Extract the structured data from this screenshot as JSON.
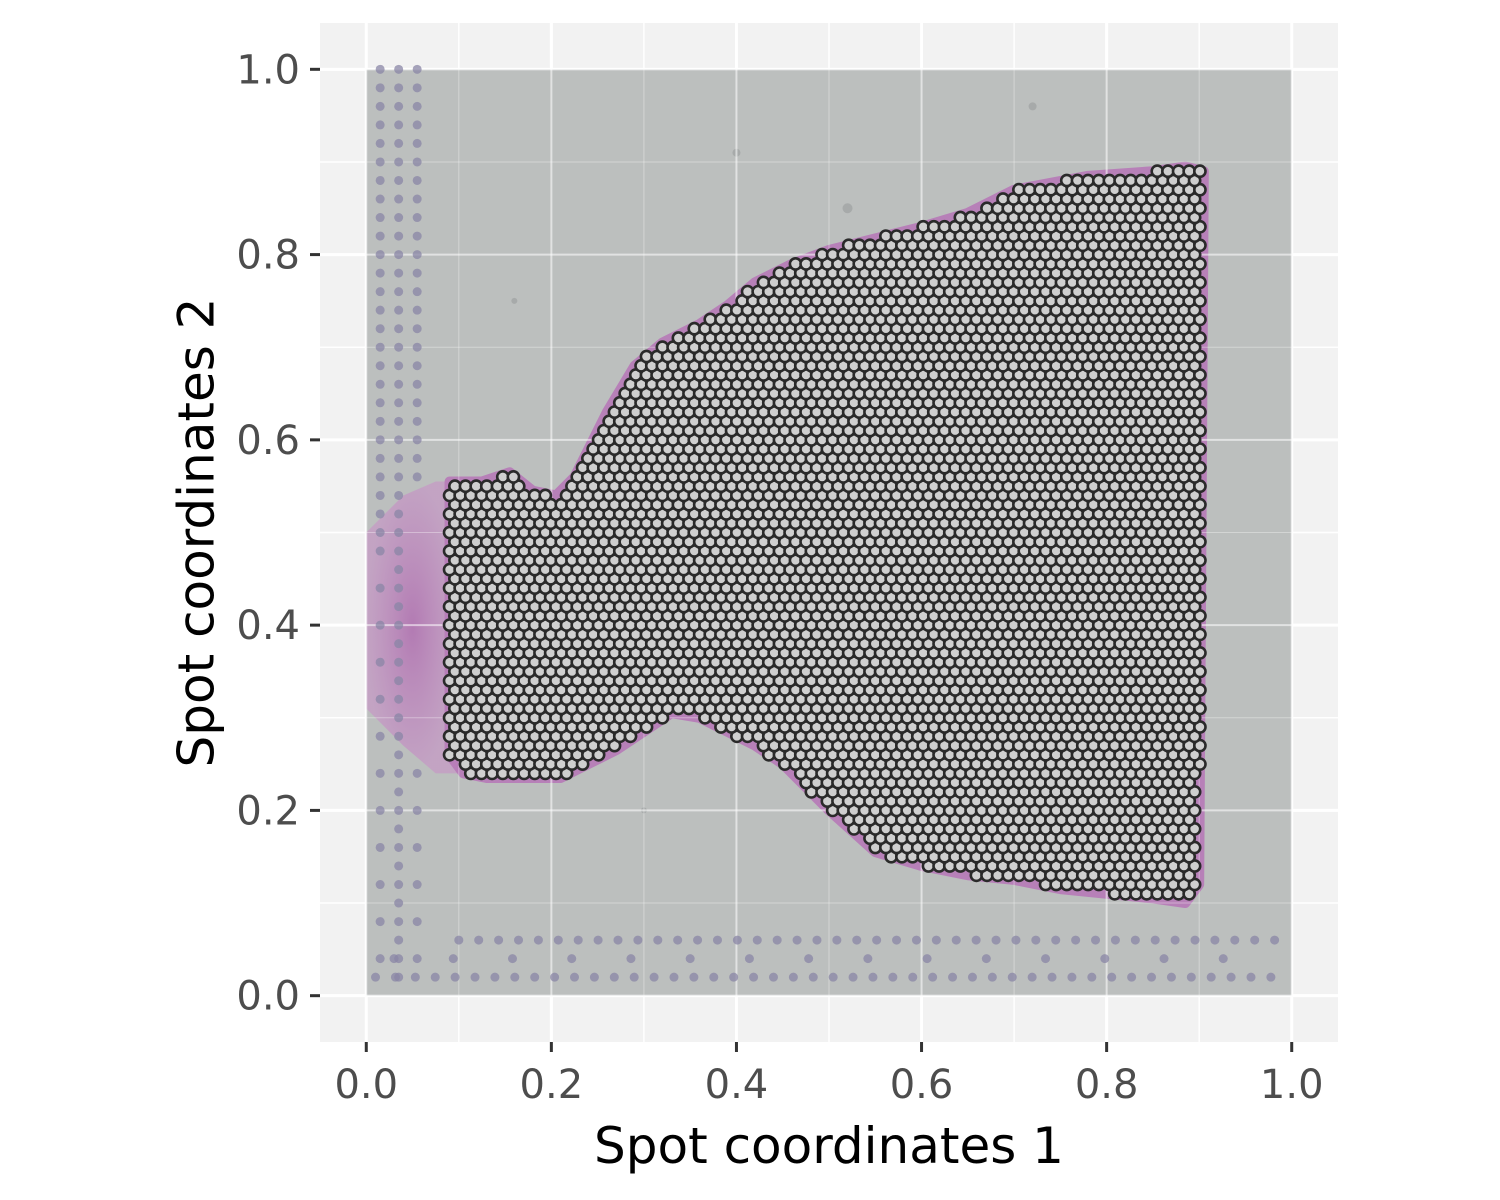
{
  "chart_data": {
    "type": "scatter",
    "title": "",
    "xlabel": "Spot coordinates 1",
    "ylabel": "Spot coordinates 2",
    "xlim": [
      -0.05,
      1.05
    ],
    "ylim": [
      -0.05,
      1.05
    ],
    "x_ticks": [
      0.0,
      0.2,
      0.4,
      0.6,
      0.8,
      1.0
    ],
    "x_tick_labels": [
      "0.0",
      "0.2",
      "0.4",
      "0.6",
      "0.8",
      "1.0"
    ],
    "y_ticks": [
      0.0,
      0.2,
      0.4,
      0.6,
      0.8,
      1.0
    ],
    "y_tick_labels": [
      "0.0",
      "0.2",
      "0.4",
      "0.6",
      "0.8",
      "1.0"
    ],
    "grid": true,
    "background_image": "H&E tissue section (spatial transcriptomics slide) spanning the full 0–1 unit square",
    "series": [
      {
        "description": "spots on tissue (filled light-grey points, dark outline)",
        "point_fill": "#cfcfcf",
        "point_stroke": "#2a2a2a",
        "spot_spacing_x": 0.0115,
        "spot_spacing_y": 0.02,
        "region_polygon": [
          [
            0.09,
            0.555
          ],
          [
            0.125,
            0.555
          ],
          [
            0.155,
            0.565
          ],
          [
            0.18,
            0.545
          ],
          [
            0.205,
            0.54
          ],
          [
            0.225,
            0.56
          ],
          [
            0.26,
            0.63
          ],
          [
            0.29,
            0.68
          ],
          [
            0.32,
            0.705
          ],
          [
            0.36,
            0.725
          ],
          [
            0.39,
            0.745
          ],
          [
            0.42,
            0.77
          ],
          [
            0.46,
            0.79
          ],
          [
            0.5,
            0.805
          ],
          [
            0.56,
            0.82
          ],
          [
            0.6,
            0.83
          ],
          [
            0.65,
            0.845
          ],
          [
            0.7,
            0.87
          ],
          [
            0.78,
            0.885
          ],
          [
            0.85,
            0.89
          ],
          [
            0.885,
            0.895
          ],
          [
            0.905,
            0.89
          ],
          [
            0.9,
            0.12
          ],
          [
            0.885,
            0.1
          ],
          [
            0.85,
            0.105
          ],
          [
            0.8,
            0.11
          ],
          [
            0.75,
            0.115
          ],
          [
            0.7,
            0.125
          ],
          [
            0.65,
            0.13
          ],
          [
            0.6,
            0.14
          ],
          [
            0.55,
            0.155
          ],
          [
            0.5,
            0.2
          ],
          [
            0.45,
            0.25
          ],
          [
            0.42,
            0.27
          ],
          [
            0.39,
            0.285
          ],
          [
            0.36,
            0.3
          ],
          [
            0.33,
            0.305
          ],
          [
            0.3,
            0.285
          ],
          [
            0.27,
            0.265
          ],
          [
            0.24,
            0.25
          ],
          [
            0.21,
            0.235
          ],
          [
            0.17,
            0.235
          ],
          [
            0.13,
            0.235
          ],
          [
            0.105,
            0.24
          ],
          [
            0.09,
            0.26
          ]
        ]
      },
      {
        "description": "fiducial frame spots (small faint purple dots)",
        "point_fill": "#8a86a6",
        "left_columns_x": [
          0.015,
          0.035,
          0.055
        ],
        "bottom_rows_y": [
          0.02,
          0.04,
          0.06
        ]
      }
    ]
  }
}
